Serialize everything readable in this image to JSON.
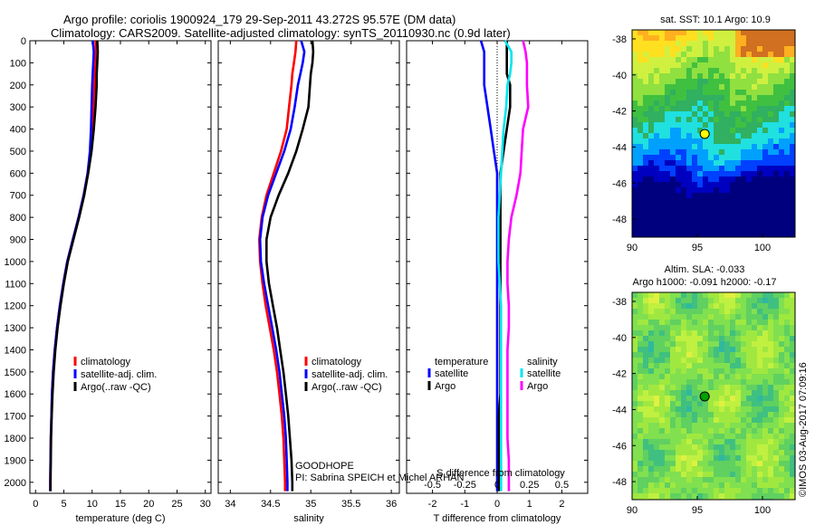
{
  "title": {
    "line1": "Argo profile: coriolis 1900924_179 29-Sep-2011 43.272S 95.57E (DM data)",
    "line2": "Climatology: CARS2009. Satellite-adjusted climatology: synTS_20110930.nc (0.9d later)"
  },
  "colors": {
    "climatology": "#ff0000",
    "satellite": "#0000ff",
    "argo": "#000000",
    "sat_salinity": "#00e5ee",
    "argo_salinity": "#ff00ff"
  },
  "depth_ticks": [
    "0",
    "100",
    "200",
    "300",
    "400",
    "500",
    "600",
    "700",
    "800",
    "900",
    "1000",
    "1100",
    "1200",
    "1300",
    "1400",
    "1500",
    "1600",
    "1700",
    "1800",
    "1900",
    "2000"
  ],
  "annotations": {
    "project": "GOODHOPE",
    "pi": "PI: Sabrina SPEICH et Michel ARHAN",
    "credit": "©IMOS 03-Aug-2017 07:09:16"
  },
  "chart_data": [
    {
      "type": "line",
      "xlabel": "temperature (deg C)",
      "ylabel": "",
      "xlim": [
        -1,
        31
      ],
      "ylim": [
        2050,
        0
      ],
      "xticks": [
        "0",
        "5",
        "10",
        "15",
        "20",
        "25",
        "30"
      ],
      "legend": [
        "climatology",
        "satellite-adj. clim.",
        "Argo(..raw -QC)"
      ],
      "legend_position": "bottom-center",
      "y": [
        0,
        50,
        100,
        150,
        200,
        300,
        400,
        500,
        600,
        700,
        800,
        900,
        1000,
        1100,
        1200,
        1300,
        1400,
        1500,
        1600,
        1700,
        1800,
        1900,
        2000,
        2040
      ],
      "series": [
        {
          "name": "climatology",
          "x": [
            10.6,
            10.7,
            10.6,
            10.5,
            10.4,
            10.2,
            10.0,
            9.7,
            9.2,
            8.5,
            7.6,
            6.6,
            5.6,
            4.9,
            4.3,
            3.8,
            3.4,
            3.1,
            2.9,
            2.8,
            2.7,
            2.65,
            2.6,
            2.6
          ]
        },
        {
          "name": "satellite-adj. clim.",
          "x": [
            10.1,
            10.3,
            10.2,
            10.1,
            10.0,
            9.9,
            9.8,
            9.6,
            9.2,
            8.5,
            7.6,
            6.6,
            5.6,
            4.9,
            4.3,
            3.8,
            3.4,
            3.1,
            2.9,
            2.8,
            2.7,
            2.65,
            2.6,
            2.6
          ]
        },
        {
          "name": "Argo(..raw -QC)",
          "x": [
            10.9,
            11.0,
            10.9,
            10.8,
            10.8,
            10.6,
            10.3,
            9.9,
            9.3,
            8.6,
            7.7,
            6.7,
            5.7,
            5.0,
            4.4,
            3.9,
            3.5,
            3.2,
            3.0,
            2.85,
            2.75,
            2.7,
            2.65,
            2.65
          ]
        }
      ]
    },
    {
      "type": "line",
      "xlabel": "salinity",
      "ylabel": "",
      "xlim": [
        33.85,
        36.1
      ],
      "ylim": [
        2050,
        0
      ],
      "xticks": [
        "34",
        "34.5",
        "35",
        "35.5",
        "36"
      ],
      "legend": [
        "climatology",
        "satellite-adj. clim.",
        "Argo(..raw -QC)"
      ],
      "legend_position": "bottom-center",
      "y": [
        0,
        50,
        100,
        150,
        200,
        300,
        400,
        500,
        600,
        700,
        800,
        900,
        1000,
        1100,
        1200,
        1300,
        1400,
        1500,
        1600,
        1700,
        1800,
        1900,
        2000,
        2040
      ],
      "series": [
        {
          "name": "climatology",
          "x": [
            34.82,
            34.81,
            34.79,
            34.77,
            34.76,
            34.73,
            34.7,
            34.63,
            34.54,
            34.45,
            34.39,
            34.36,
            34.37,
            34.4,
            34.44,
            34.49,
            34.54,
            34.58,
            34.61,
            34.64,
            34.66,
            34.67,
            34.68,
            34.68
          ]
        },
        {
          "name": "satellite-adj. clim.",
          "x": [
            34.88,
            34.92,
            34.9,
            34.87,
            34.84,
            34.8,
            34.75,
            34.67,
            34.57,
            34.47,
            34.4,
            34.37,
            34.38,
            34.42,
            34.47,
            34.52,
            34.57,
            34.61,
            34.64,
            34.67,
            34.69,
            34.7,
            34.71,
            34.71
          ]
        },
        {
          "name": "Argo(..raw -QC)",
          "x": [
            35.02,
            35.03,
            35.02,
            35.0,
            34.99,
            34.97,
            34.9,
            34.82,
            34.72,
            34.6,
            34.5,
            34.45,
            34.45,
            34.48,
            34.53,
            34.58,
            34.62,
            34.66,
            34.69,
            34.72,
            34.74,
            34.76,
            34.77,
            34.77
          ]
        }
      ]
    },
    {
      "type": "line",
      "xlabel": "T difference from climatology",
      "xlabel_top": "S difference from climatology",
      "ylabel": "",
      "xlim": [
        -2.8,
        2.8
      ],
      "ylim": [
        2050,
        0
      ],
      "xticks": [
        "-2",
        "-1",
        "0",
        "1",
        "2"
      ],
      "xticks_top": [
        "-0.5",
        "-0.25",
        "0",
        "0.25",
        "0.5"
      ],
      "legend_temperature": [
        "temperature",
        "satellite",
        "Argo"
      ],
      "legend_salinity": [
        "salinity",
        "satellite",
        "Argo"
      ],
      "y": [
        0,
        50,
        100,
        150,
        200,
        300,
        400,
        500,
        600,
        700,
        800,
        900,
        1000,
        1100,
        1200,
        1300,
        1400,
        1500,
        1600,
        1700,
        1800,
        1900,
        2000,
        2040
      ],
      "series": [
        {
          "name": "temperature satellite",
          "x": [
            -0.5,
            -0.4,
            -0.4,
            -0.4,
            -0.4,
            -0.3,
            -0.2,
            -0.1,
            0.0,
            0.0,
            0.0,
            0.0,
            0.0,
            0.0,
            0.0,
            0.0,
            0.0,
            0.0,
            0.0,
            0.0,
            0.0,
            0.0,
            0.0,
            0.0
          ]
        },
        {
          "name": "temperature Argo",
          "x": [
            0.3,
            0.3,
            0.3,
            0.3,
            0.4,
            0.4,
            0.3,
            0.2,
            0.1,
            0.1,
            0.1,
            0.1,
            0.1,
            0.1,
            0.1,
            0.1,
            0.1,
            0.1,
            0.1,
            0.05,
            0.05,
            0.05,
            0.05,
            0.05
          ]
        },
        {
          "name": "salinity satellite",
          "x": [
            0.06,
            0.11,
            0.11,
            0.1,
            0.08,
            0.07,
            0.05,
            0.04,
            0.03,
            0.02,
            0.01,
            0.01,
            0.01,
            0.02,
            0.03,
            0.03,
            0.03,
            0.03,
            0.03,
            0.03,
            0.03,
            0.03,
            0.03,
            0.03
          ]
        },
        {
          "name": "salinity Argo",
          "x": [
            0.2,
            0.22,
            0.23,
            0.23,
            0.23,
            0.24,
            0.2,
            0.19,
            0.18,
            0.15,
            0.11,
            0.09,
            0.08,
            0.08,
            0.09,
            0.09,
            0.08,
            0.08,
            0.08,
            0.08,
            0.08,
            0.09,
            0.09,
            0.09
          ]
        }
      ]
    },
    {
      "type": "heatmap",
      "title": "sat. SST: 10.1  Argo: 10.9",
      "xticks": [
        "90",
        "95",
        "100"
      ],
      "yticks": [
        "-38",
        "-40",
        "-42",
        "-44",
        "-46",
        "-48"
      ],
      "xlim": [
        90,
        102.5
      ],
      "ylim": [
        -49,
        -37.5
      ],
      "marker": {
        "lon": 95.57,
        "lat": -43.272,
        "color": "#ffff00"
      }
    },
    {
      "type": "heatmap",
      "title_line1": "Altim. SLA: -0.033",
      "title_line2": "Argo h1000: -0.091 h2000: -0.17",
      "xticks": [
        "90",
        "95",
        "100"
      ],
      "yticks": [
        "-38",
        "-40",
        "-42",
        "-44",
        "-46",
        "-48"
      ],
      "xlim": [
        90,
        102.5
      ],
      "ylim": [
        -49,
        -37.5
      ],
      "marker": {
        "lon": 95.57,
        "lat": -43.272,
        "color": "#00a000"
      }
    }
  ]
}
